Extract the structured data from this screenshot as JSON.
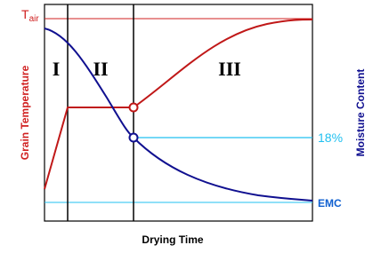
{
  "temperature_axis": {
    "symbol": "T",
    "subscript": "air",
    "label": "Grain Temperature"
  },
  "moisture_axis": {
    "label": "Moisture Content",
    "markers": [
      "18%",
      "EMC"
    ]
  },
  "x_axis": {
    "label": "Drying Time"
  },
  "phases": [
    "I",
    "II",
    "III"
  ]
}
